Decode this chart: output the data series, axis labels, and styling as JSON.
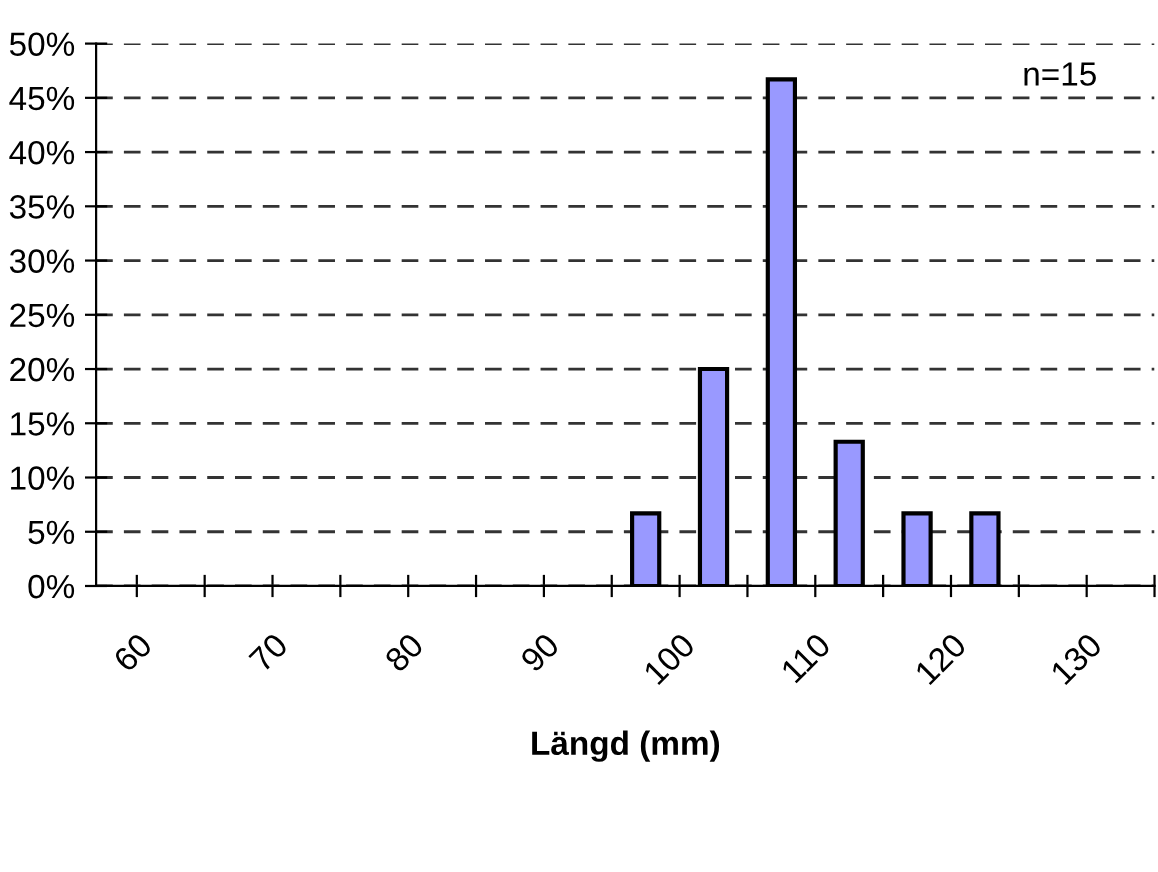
{
  "chart_data": {
    "type": "bar",
    "xlabel": "Längd (mm)",
    "x": [
      97.5,
      102.5,
      107.5,
      112.5,
      117.5,
      122.5
    ],
    "values": [
      6.7,
      20,
      46.7,
      13.3,
      6.7,
      6.7
    ],
    "color": "#9999ff",
    "xlim": [
      57,
      135
    ],
    "xticks": [
      60,
      {
        "value": 65,
        "label": null
      },
      70,
      {
        "value": 75,
        "label": null
      },
      80,
      {
        "value": 85,
        "label": null
      },
      90,
      {
        "value": 95,
        "label": null
      },
      100,
      {
        "value": 105,
        "label": null
      },
      110,
      {
        "value": 115,
        "label": null
      },
      120,
      {
        "value": 125,
        "label": null
      },
      130,
      {
        "value": 135,
        "label": null
      }
    ],
    "ylim": [
      0,
      50
    ],
    "yticks": [
      {
        "value": 0,
        "label": "0%"
      },
      {
        "value": 5,
        "label": "5%"
      },
      {
        "value": 10,
        "label": "10%"
      },
      {
        "value": 15,
        "label": "15%"
      },
      {
        "value": 20,
        "label": "20%"
      },
      {
        "value": 25,
        "label": "25%"
      },
      {
        "value": 30,
        "label": "30%"
      },
      {
        "value": 35,
        "label": "35%"
      },
      {
        "value": 40,
        "label": "40%"
      },
      {
        "value": 45,
        "label": "45%"
      },
      {
        "value": 50,
        "label": "50%"
      }
    ],
    "grid": "y",
    "annotations": [
      "n=15"
    ]
  }
}
